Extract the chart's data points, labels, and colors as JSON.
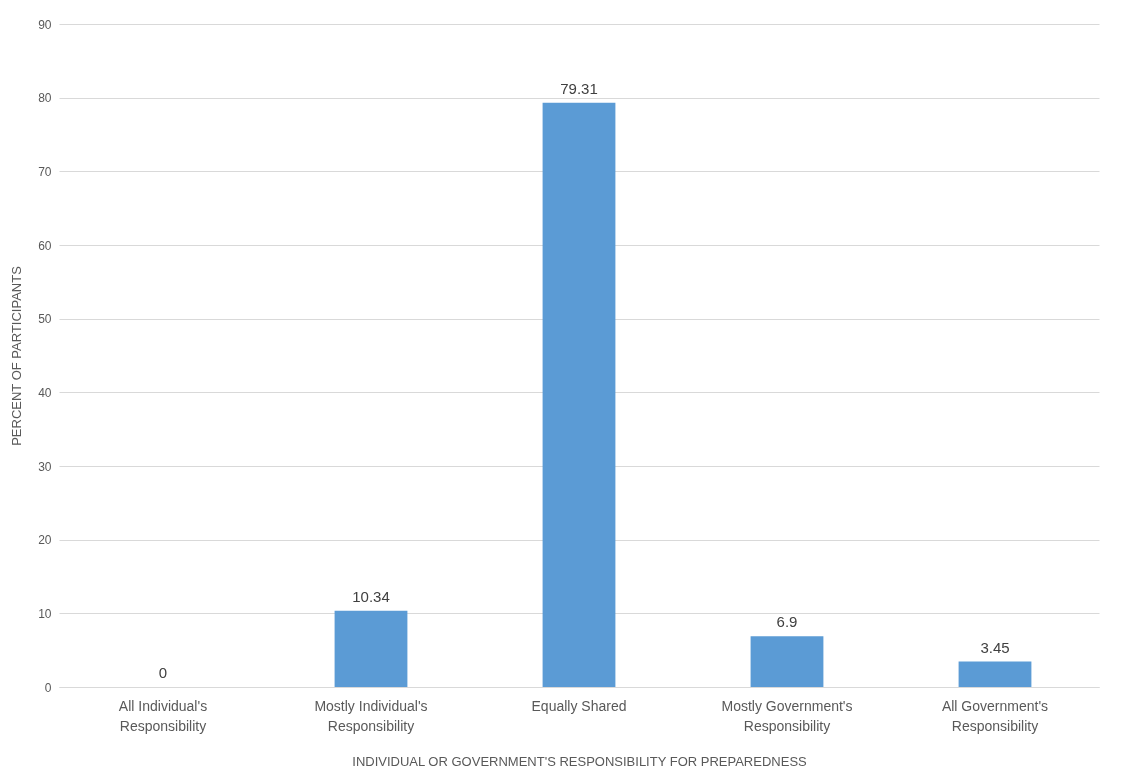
{
  "chart_data": {
    "type": "bar",
    "xlabel": "INDIVIDUAL OR GOVERNMENT'S RESPONSIBILITY FOR PREPAREDNESS",
    "ylabel": "PERCENT OF PARTICIPANTS",
    "categories": [
      "All Individual's Responsibility",
      "Mostly Individual's Responsibility",
      "Equally Shared",
      "Mostly Government's Responsibility",
      "All Government's Responsibility"
    ],
    "values": [
      0,
      10.34,
      79.31,
      6.9,
      3.45
    ],
    "color": "#5b9bd5",
    "ylim": [
      0,
      90
    ],
    "yticks": [
      0,
      10,
      20,
      30,
      40,
      50,
      60,
      70,
      80,
      90
    ],
    "grid": "y",
    "data_labels": true
  }
}
